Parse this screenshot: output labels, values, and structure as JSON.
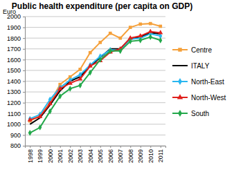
{
  "chart_data": {
    "type": "line",
    "title": "Public health expenditure (per capita on GDP)",
    "y_label": "Euro",
    "categories": [
      "1998",
      "1999",
      "2000",
      "2001",
      "2002",
      "2003",
      "2004",
      "2005",
      "2006",
      "2007",
      "2008",
      "2009",
      "2010",
      "2011"
    ],
    "series": [
      {
        "name": "Centre",
        "color": "#f5a03a",
        "marker": "square",
        "values": [
          1030,
          1080,
          1200,
          1370,
          1440,
          1510,
          1665,
          1760,
          1845,
          1800,
          1900,
          1930,
          1935,
          1910
        ]
      },
      {
        "name": "ITALY",
        "color": "#000000",
        "marker": "none",
        "values": [
          1000,
          1060,
          1180,
          1310,
          1400,
          1440,
          1540,
          1620,
          1700,
          1700,
          1800,
          1810,
          1850,
          1840
        ]
      },
      {
        "name": "North-East",
        "color": "#29b6f0",
        "marker": "diamond",
        "values": [
          1050,
          1090,
          1230,
          1340,
          1410,
          1460,
          1550,
          1630,
          1690,
          1690,
          1790,
          1800,
          1840,
          1820
        ]
      },
      {
        "name": "North-West",
        "color": "#e0201c",
        "marker": "triangle",
        "values": [
          1040,
          1070,
          1190,
          1330,
          1380,
          1420,
          1540,
          1590,
          1670,
          1700,
          1800,
          1820,
          1860,
          1850
        ]
      },
      {
        "name": "South",
        "color": "#22a84a",
        "marker": "diamond",
        "values": [
          920,
          970,
          1120,
          1260,
          1330,
          1360,
          1480,
          1600,
          1680,
          1680,
          1770,
          1780,
          1810,
          1780
        ]
      }
    ],
    "ylim": [
      800,
      2000
    ],
    "yticks": [
      800,
      900,
      1000,
      1100,
      1200,
      1300,
      1400,
      1500,
      1600,
      1700,
      1800,
      1900,
      2000
    ],
    "grid": true,
    "legend": "right"
  }
}
